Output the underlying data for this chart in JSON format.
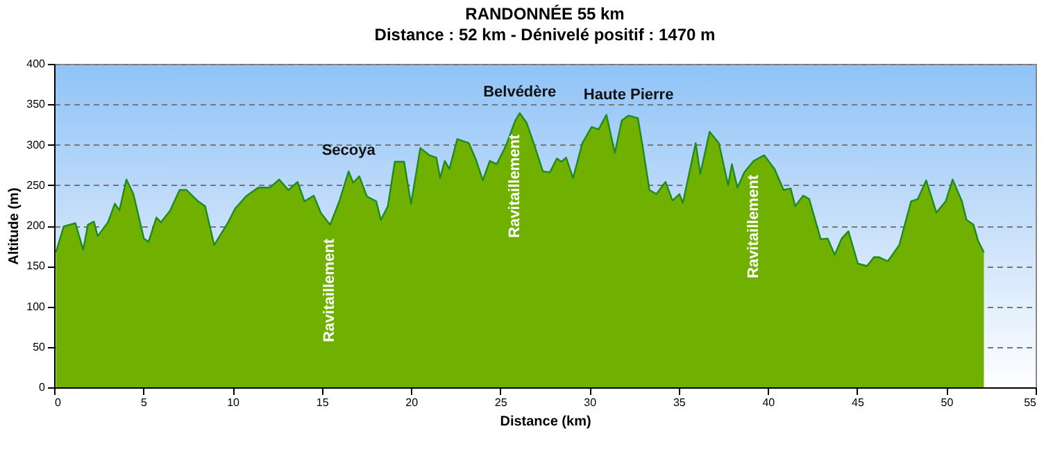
{
  "chart_data": {
    "type": "area",
    "title": "RANDONNÉE 55 km",
    "subtitle": "Distance : 52 km - Dénivelé positif : 1470 m",
    "xlabel": "Distance (km)",
    "ylabel": "Altitude (m)",
    "xlim": [
      0,
      55
    ],
    "xticks": [
      0,
      5,
      10,
      15,
      20,
      25,
      30,
      35,
      40,
      45,
      50,
      55
    ],
    "ylim": [
      0,
      400
    ],
    "yticks": [
      0,
      50,
      100,
      150,
      200,
      250,
      300,
      350,
      400
    ],
    "grid": "y",
    "series": [
      {
        "color": "#6fb000",
        "x": [
          0.1,
          0.54,
          1.19,
          1.63,
          1.89,
          2.23,
          2.44,
          3.01,
          3.4,
          3.66,
          4.05,
          4.44,
          5.03,
          5.29,
          5.73,
          5.99,
          6.51,
          7.03,
          7.42,
          8.07,
          8.46,
          8.97,
          9.75,
          10.14,
          10.79,
          11.44,
          12.09,
          12.61,
          13.13,
          13.64,
          14.03,
          14.55,
          14.94,
          15.46,
          15.98,
          16.5,
          16.76,
          17.1,
          17.53,
          18.05,
          18.31,
          18.7,
          19.09,
          19.61,
          20.0,
          20.52,
          21.03,
          21.42,
          21.63,
          21.89,
          22.15,
          22.59,
          23.24,
          23.63,
          24.02,
          24.41,
          24.8,
          25.32,
          25.84,
          26.09,
          26.48,
          26.87,
          27.39,
          27.78,
          28.17,
          28.43,
          28.69,
          29.08,
          29.6,
          30.12,
          30.51,
          30.95,
          31.42,
          31.81,
          32.19,
          32.71,
          32.97,
          33.36,
          33.75,
          34.26,
          34.65,
          35.04,
          35.23,
          35.95,
          36.21,
          36.73,
          37.25,
          37.77,
          37.98,
          38.29,
          38.68,
          39.2,
          39.79,
          40.37,
          40.88,
          41.27,
          41.53,
          41.97,
          42.31,
          42.96,
          43.35,
          43.74,
          44.13,
          44.51,
          45.04,
          45.55,
          45.94,
          46.2,
          46.72,
          47.36,
          48.02,
          48.4,
          48.87,
          49.44,
          49.96,
          50.35,
          50.87,
          51.13,
          51.52,
          51.78,
          52.1
        ],
        "values": [
          167,
          199,
          203,
          170,
          201,
          205,
          187,
          204,
          227,
          219,
          257,
          239,
          184,
          180,
          210,
          204,
          219,
          244,
          244,
          230,
          224,
          176,
          204,
          221,
          237,
          247,
          247,
          257,
          244,
          254,
          230,
          237,
          216,
          201,
          230,
          267,
          253,
          261,
          236,
          230,
          207,
          224,
          279,
          279,
          227,
          296,
          287,
          284,
          259,
          280,
          270,
          307,
          302,
          282,
          256,
          280,
          276,
          299,
          330,
          339,
          327,
          302,
          267,
          266,
          283,
          279,
          284,
          259,
          302,
          322,
          319,
          337,
          290,
          330,
          336,
          333,
          299,
          244,
          239,
          254,
          231,
          239,
          228,
          302,
          264,
          316,
          302,
          250,
          276,
          247,
          266,
          280,
          287,
          270,
          244,
          246,
          224,
          237,
          233,
          183,
          184,
          164,
          184,
          193,
          153,
          150,
          161,
          161,
          156,
          176,
          230,
          233,
          256,
          216,
          230,
          257,
          230,
          207,
          201,
          181,
          167
        ]
      }
    ],
    "annotations": [
      {
        "text": "Secoya",
        "x": 16.5,
        "y": 267
      },
      {
        "text": "Belvédère",
        "x": 26.09,
        "y": 339
      },
      {
        "text": "Haute Pierre",
        "x": 32.19,
        "y": 336
      },
      {
        "text": "Ravitaillement",
        "x": 15.46,
        "y": 201
      },
      {
        "text": "Ravitaillement",
        "x": 25.84,
        "y": 330
      },
      {
        "text": "Ravitaillement",
        "x": 39.2,
        "y": 280
      }
    ]
  }
}
